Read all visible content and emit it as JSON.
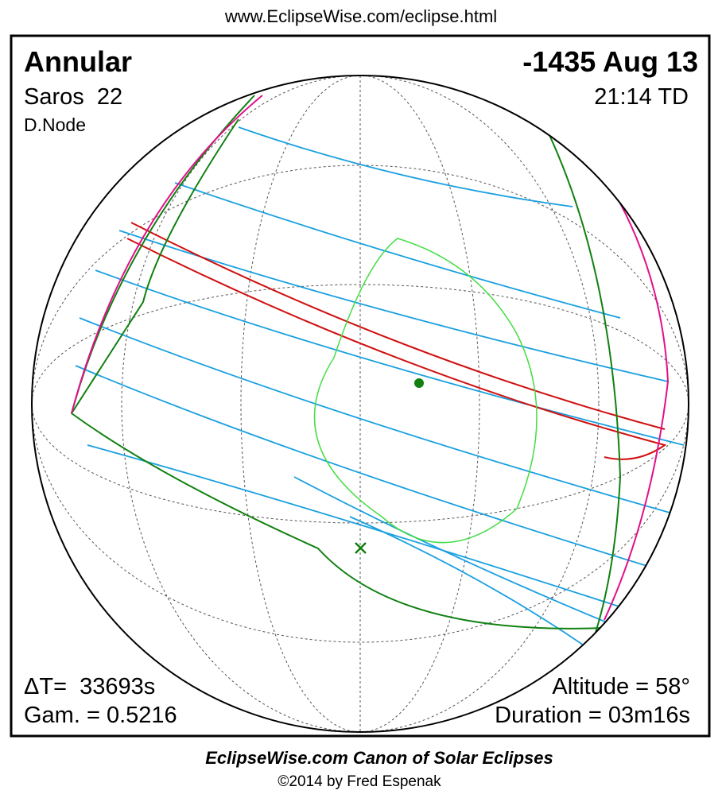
{
  "header": {
    "url": "www.EclipseWise.com/eclipse.html"
  },
  "panel": {
    "type": "Annular",
    "date": "-1435 Aug 13",
    "saros": "Saros  22",
    "time": "21:14 TD",
    "node": "D.Node",
    "delta_t": "ΔT=  33693s",
    "gamma": "Gam. = 0.5216",
    "altitude": "Altitude = 58°",
    "duration": "Duration = 03m16s"
  },
  "footer": {
    "title": "EclipseWise.com Canon of Solar Eclipses",
    "copyright": "©2014 by Fred Espenak"
  }
}
